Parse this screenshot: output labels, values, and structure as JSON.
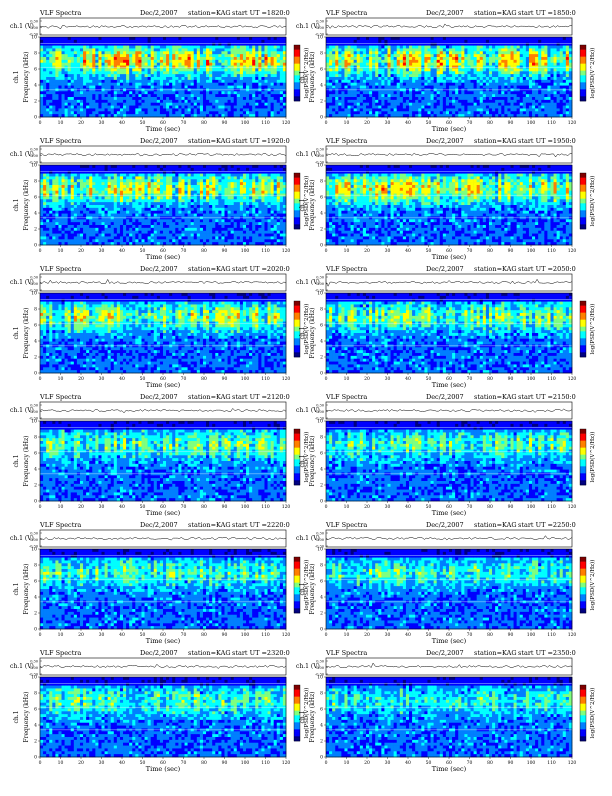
{
  "page": {
    "title": "VLF Spectra — station KAG, Dec 2007"
  },
  "colormap": {
    "name": "jet",
    "stops": [
      "#00007f",
      "#0000ff",
      "#007fff",
      "#00ffff",
      "#7fff7f",
      "#ffff00",
      "#ff7f00",
      "#ff0000",
      "#7f0000"
    ],
    "background_color": "#0a1a9a"
  },
  "chart_data": [
    {
      "type": "heatmap",
      "title": "VLF Spectra",
      "date": "Dec/2,2007",
      "station": "station=KAG",
      "start": "start UT =1820:0",
      "ch_label": "ch.1 (V)",
      "ch_ylim": [
        0.3,
        -0.3
      ],
      "ch_ticks": [
        "0.30",
        "0.00",
        "-0.30"
      ],
      "ylabel": "Frequency (kHz)",
      "yticks": [
        0,
        2,
        4,
        6,
        8,
        10
      ],
      "xlabel": "Time (sec)",
      "xticks": [
        0,
        10,
        20,
        30,
        40,
        50,
        60,
        70,
        80,
        90,
        100,
        110,
        120
      ],
      "xlim": [
        0,
        120
      ],
      "ylim": [
        0,
        10
      ],
      "cbar_label": "log(PSD(V^2/Hz))",
      "intensity": 0.75,
      "seed": 11
    },
    {
      "type": "heatmap",
      "title": "VLF Spectra",
      "date": "Dec/2,2007",
      "station": "station=KAG",
      "start": "start UT =1850:0",
      "ch_label": "ch.1 (V)",
      "ch_ylim": [
        0.3,
        -0.3
      ],
      "ch_ticks": [
        "0.30",
        "0.00",
        "-0.30"
      ],
      "ylabel": "Frequency (kHz)",
      "yticks": [
        0,
        2,
        4,
        6,
        8,
        10
      ],
      "xlabel": "Time (sec)",
      "xticks": [
        0,
        10,
        20,
        30,
        40,
        50,
        60,
        70,
        80,
        90,
        100,
        110,
        120
      ],
      "xlim": [
        0,
        120
      ],
      "ylim": [
        0,
        10
      ],
      "cbar_label": "log(PSD(V^2/Hz))",
      "intensity": 0.7,
      "seed": 23
    },
    {
      "type": "heatmap",
      "title": "VLF Spectra",
      "date": "Dec/2,2007",
      "station": "station=KAG",
      "start": "start UT =1920:0",
      "ch_label": "ch.1 (V)",
      "ch_ylim": [
        0.3,
        -0.3
      ],
      "ch_ticks": [
        "0.30",
        "0.00",
        "-0.30"
      ],
      "ylabel": "Frequency (kHz)",
      "yticks": [
        0,
        2,
        4,
        6,
        8,
        10
      ],
      "xlabel": "Time (sec)",
      "xticks": [
        0,
        10,
        20,
        30,
        40,
        50,
        60,
        70,
        80,
        90,
        100,
        110,
        120
      ],
      "xlim": [
        0,
        120
      ],
      "ylim": [
        0,
        10
      ],
      "cbar_label": "log(PSD(V^2/Hz))",
      "intensity": 0.65,
      "seed": 37
    },
    {
      "type": "heatmap",
      "title": "VLF Spectra",
      "date": "Dec/2,2007",
      "station": "station=KAG",
      "start": "start UT =1950:0",
      "ch_label": "ch.1 (V)",
      "ch_ylim": [
        0.3,
        -0.3
      ],
      "ch_ticks": [
        "0.30",
        "0.00",
        "-0.30"
      ],
      "ylabel": "Frequency (kHz)",
      "yticks": [
        0,
        2,
        4,
        6,
        8,
        10
      ],
      "xlabel": "Time (sec)",
      "xticks": [
        0,
        10,
        20,
        30,
        40,
        50,
        60,
        70,
        80,
        90,
        100,
        110,
        120
      ],
      "xlim": [
        0,
        120
      ],
      "ylim": [
        0,
        10
      ],
      "cbar_label": "log(PSD(V^2/Hz))",
      "intensity": 0.65,
      "seed": 41
    },
    {
      "type": "heatmap",
      "title": "VLF Spectra",
      "date": "Dec/2,2007",
      "station": "station=KAG",
      "start": "start UT =2020:0",
      "ch_label": "ch.1 (V)",
      "ch_ylim": [
        0.3,
        -0.3
      ],
      "ch_ticks": [
        "0.30",
        "0.00",
        "-0.30"
      ],
      "ylabel": "Frequency (kHz)",
      "yticks": [
        0,
        2,
        4,
        6,
        8,
        10
      ],
      "xlabel": "Time (sec)",
      "xticks": [
        0,
        10,
        20,
        30,
        40,
        50,
        60,
        70,
        80,
        90,
        100,
        110,
        120
      ],
      "xlim": [
        0,
        120
      ],
      "ylim": [
        0,
        10
      ],
      "cbar_label": "log(PSD(V^2/Hz))",
      "intensity": 0.55,
      "seed": 53
    },
    {
      "type": "heatmap",
      "title": "VLF Spectra",
      "date": "Dec/2,2007",
      "station": "station=KAG",
      "start": "start UT =2050:0",
      "ch_label": "ch.1 (V)",
      "ch_ylim": [
        0.3,
        -0.3
      ],
      "ch_ticks": [
        "0.30",
        "0.00",
        "-0.30"
      ],
      "ylabel": "Frequency (kHz)",
      "yticks": [
        0,
        2,
        4,
        6,
        8,
        10
      ],
      "xlabel": "Time (sec)",
      "xticks": [
        0,
        10,
        20,
        30,
        40,
        50,
        60,
        70,
        80,
        90,
        100,
        110,
        120
      ],
      "xlim": [
        0,
        120
      ],
      "ylim": [
        0,
        10
      ],
      "cbar_label": "log(PSD(V^2/Hz))",
      "intensity": 0.5,
      "seed": 67
    },
    {
      "type": "heatmap",
      "title": "VLF Spectra",
      "date": "Dec/2,2007",
      "station": "station=KAG",
      "start": "start UT =2120:0",
      "ch_label": "ch.1 (V)",
      "ch_ylim": [
        0.3,
        -0.3
      ],
      "ch_ticks": [
        "0.30",
        "0.00",
        "-0.30"
      ],
      "ylabel": "Frequency (kHz)",
      "yticks": [
        0,
        2,
        4,
        6,
        8,
        10
      ],
      "xlabel": "Time (sec)",
      "xticks": [
        0,
        10,
        20,
        30,
        40,
        50,
        60,
        70,
        80,
        90,
        100,
        110,
        120
      ],
      "xlim": [
        0,
        120
      ],
      "ylim": [
        0,
        10
      ],
      "cbar_label": "log(PSD(V^2/Hz))",
      "intensity": 0.45,
      "seed": 71
    },
    {
      "type": "heatmap",
      "title": "VLF Spectra",
      "date": "Dec/2,2007",
      "station": "station=KAG",
      "start": "start UT =2150:0",
      "ch_label": "ch.1 (V)",
      "ch_ylim": [
        0.3,
        -0.3
      ],
      "ch_ticks": [
        "0.30",
        "0.00",
        "-0.30"
      ],
      "ylabel": "Frequency (kHz)",
      "yticks": [
        0,
        2,
        4,
        6,
        8,
        10
      ],
      "xlabel": "Time (sec)",
      "xticks": [
        0,
        10,
        20,
        30,
        40,
        50,
        60,
        70,
        80,
        90,
        100,
        110,
        120
      ],
      "xlim": [
        0,
        120
      ],
      "ylim": [
        0,
        10
      ],
      "cbar_label": "log(PSD(V^2/Hz))",
      "intensity": 0.42,
      "seed": 83
    },
    {
      "type": "heatmap",
      "title": "VLF Spectra",
      "date": "Dec/2,2007",
      "station": "station=KAG",
      "start": "start UT =2220:0",
      "ch_label": "ch.1 (V)",
      "ch_ylim": [
        0.3,
        -0.3
      ],
      "ch_ticks": [
        "0.30",
        "0.00",
        "-0.30"
      ],
      "ylabel": "Frequency (kHz)",
      "yticks": [
        0,
        2,
        4,
        6,
        8,
        10
      ],
      "xlabel": "Time (sec)",
      "xticks": [
        0,
        10,
        20,
        30,
        40,
        50,
        60,
        70,
        80,
        90,
        100,
        110,
        120
      ],
      "xlim": [
        0,
        120
      ],
      "ylim": [
        0,
        10
      ],
      "cbar_label": "log(PSD(V^2/Hz))",
      "intensity": 0.4,
      "seed": 97
    },
    {
      "type": "heatmap",
      "title": "VLF Spectra",
      "date": "Dec/2,2007",
      "station": "station=KAG",
      "start": "start UT =2250:0",
      "ch_label": "ch.1 (V)",
      "ch_ylim": [
        0.3,
        -0.3
      ],
      "ch_ticks": [
        "0.30",
        "0.00",
        "-0.30"
      ],
      "ylabel": "Frequency (kHz)",
      "yticks": [
        0,
        2,
        4,
        6,
        8,
        10
      ],
      "xlabel": "Time (sec)",
      "xticks": [
        0,
        10,
        20,
        30,
        40,
        50,
        60,
        70,
        80,
        90,
        100,
        110,
        120
      ],
      "xlim": [
        0,
        120
      ],
      "ylim": [
        0,
        10
      ],
      "cbar_label": "log(PSD(V^2/Hz))",
      "intensity": 0.38,
      "seed": 101
    },
    {
      "type": "heatmap",
      "title": "VLF Spectra",
      "date": "Dec/2,2007",
      "station": "station=KAG",
      "start": "start UT =2320:0",
      "ch_label": "ch.1 (V)",
      "ch_ylim": [
        0.3,
        -0.3
      ],
      "ch_ticks": [
        "0.30",
        "0.00",
        "-0.30"
      ],
      "ylabel": "Frequency (kHz)",
      "yticks": [
        0,
        2,
        4,
        6,
        8,
        10
      ],
      "xlabel": "Time (sec)",
      "xticks": [
        0,
        10,
        20,
        30,
        40,
        50,
        60,
        70,
        80,
        90,
        100,
        110,
        120
      ],
      "xlim": [
        0,
        120
      ],
      "ylim": [
        0,
        10
      ],
      "cbar_label": "log(PSD(V^2/Hz))",
      "intensity": 0.4,
      "seed": 113
    },
    {
      "type": "heatmap",
      "title": "VLF Spectra",
      "date": "Dec/2,2007",
      "station": "station=KAG",
      "start": "start UT =2350:0",
      "ch_label": "ch.1 (V)",
      "ch_ylim": [
        0.3,
        -0.3
      ],
      "ch_ticks": [
        "0.30",
        "0.00",
        "-0.30"
      ],
      "ylabel": "Frequency (kHz)",
      "yticks": [
        0,
        2,
        4,
        6,
        8,
        10
      ],
      "xlabel": "Time (sec)",
      "xticks": [
        0,
        10,
        20,
        30,
        40,
        50,
        60,
        70,
        80,
        90,
        100,
        110,
        120
      ],
      "xlim": [
        0,
        120
      ],
      "ylim": [
        0,
        10
      ],
      "cbar_label": "log(PSD(V^2/Hz))",
      "intensity": 0.35,
      "seed": 127
    }
  ]
}
